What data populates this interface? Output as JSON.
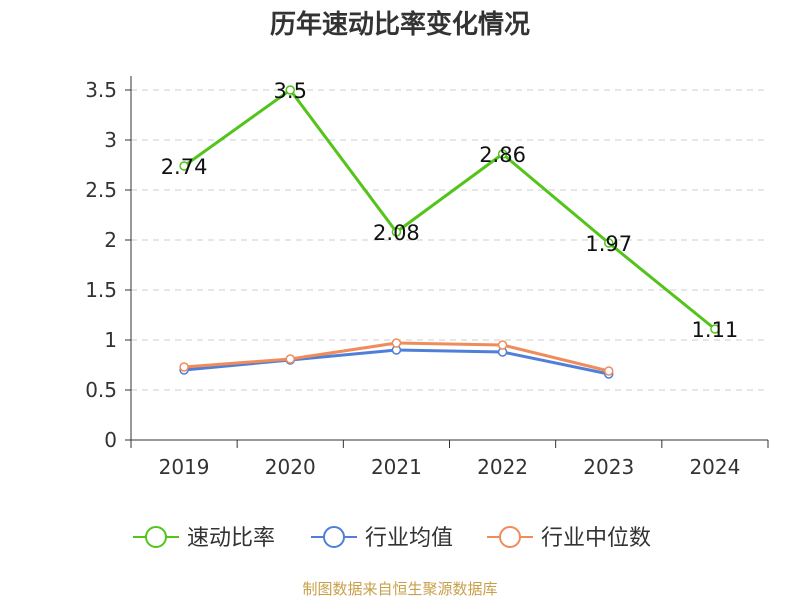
{
  "chart_data": {
    "type": "line",
    "title": "历年速动比率变化情况",
    "categories": [
      "2019",
      "2020",
      "2021",
      "2022",
      "2023",
      "2024"
    ],
    "ylim": [
      0,
      3.5
    ],
    "yticks": [
      "0",
      "0.5",
      "1",
      "1.5",
      "2",
      "2.5",
      "3",
      "3.5"
    ],
    "grid": true,
    "legend_position": "bottom",
    "series": [
      {
        "name": "速动比率",
        "color": "#52c41a",
        "values": [
          2.74,
          3.5,
          2.08,
          2.86,
          1.97,
          1.11
        ],
        "labels": [
          "2.74",
          "3.5",
          "2.08",
          "2.86",
          "1.97",
          "1.11"
        ]
      },
      {
        "name": "行业均值",
        "color": "#4f7fd8",
        "values": [
          0.7,
          0.8,
          0.9,
          0.88,
          0.66,
          null
        ]
      },
      {
        "name": "行业中位数",
        "color": "#f08c5a",
        "values": [
          0.73,
          0.81,
          0.97,
          0.95,
          0.69,
          null
        ]
      }
    ]
  },
  "source_note": "制图数据来自恒生聚源数据库"
}
